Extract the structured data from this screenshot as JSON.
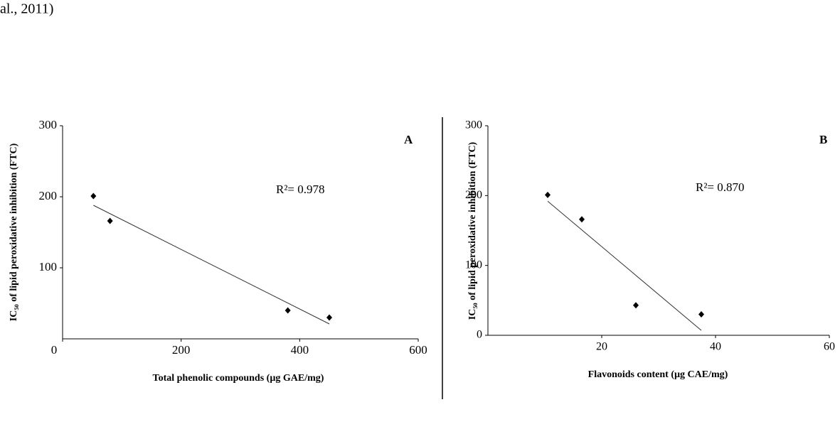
{
  "header_text": "al., 2011)",
  "chart_data": [
    {
      "type": "scatter",
      "panel": "A",
      "x_label": "Total phenolic compounds (µg GAE/mg)",
      "y_label": "IC₅₀ of lipid peroxidative inhibition (FTC)",
      "annotation": "R²= 0.978",
      "xlim": [
        0,
        600
      ],
      "xticks": [
        0,
        200,
        400,
        600
      ],
      "ylim": [
        0,
        300
      ],
      "yticks": [
        100,
        200,
        300
      ],
      "color": "#000000",
      "x": [
        52,
        80,
        380,
        450
      ],
      "values": [
        201,
        166,
        40,
        30
      ],
      "trendline": {
        "x": [
          52,
          450
        ],
        "values": [
          188,
          21
        ]
      }
    },
    {
      "type": "scatter",
      "panel": "B",
      "x_label": "Flavonoids content (µg CAE/mg)",
      "y_label": "IC₅₀ of lipid peroxidative inhibition (FTC)",
      "annotation": "R²= 0.870",
      "xlim": [
        0,
        60
      ],
      "xticks": [
        20,
        40,
        60
      ],
      "ylim": [
        0,
        300
      ],
      "yticks": [
        0,
        100,
        200,
        300
      ],
      "color": "#000000",
      "x": [
        10.5,
        16.5,
        26,
        37.5
      ],
      "values": [
        201,
        166,
        43,
        30
      ],
      "trendline": {
        "x": [
          10.5,
          37.5
        ],
        "values": [
          192,
          7
        ]
      }
    }
  ]
}
